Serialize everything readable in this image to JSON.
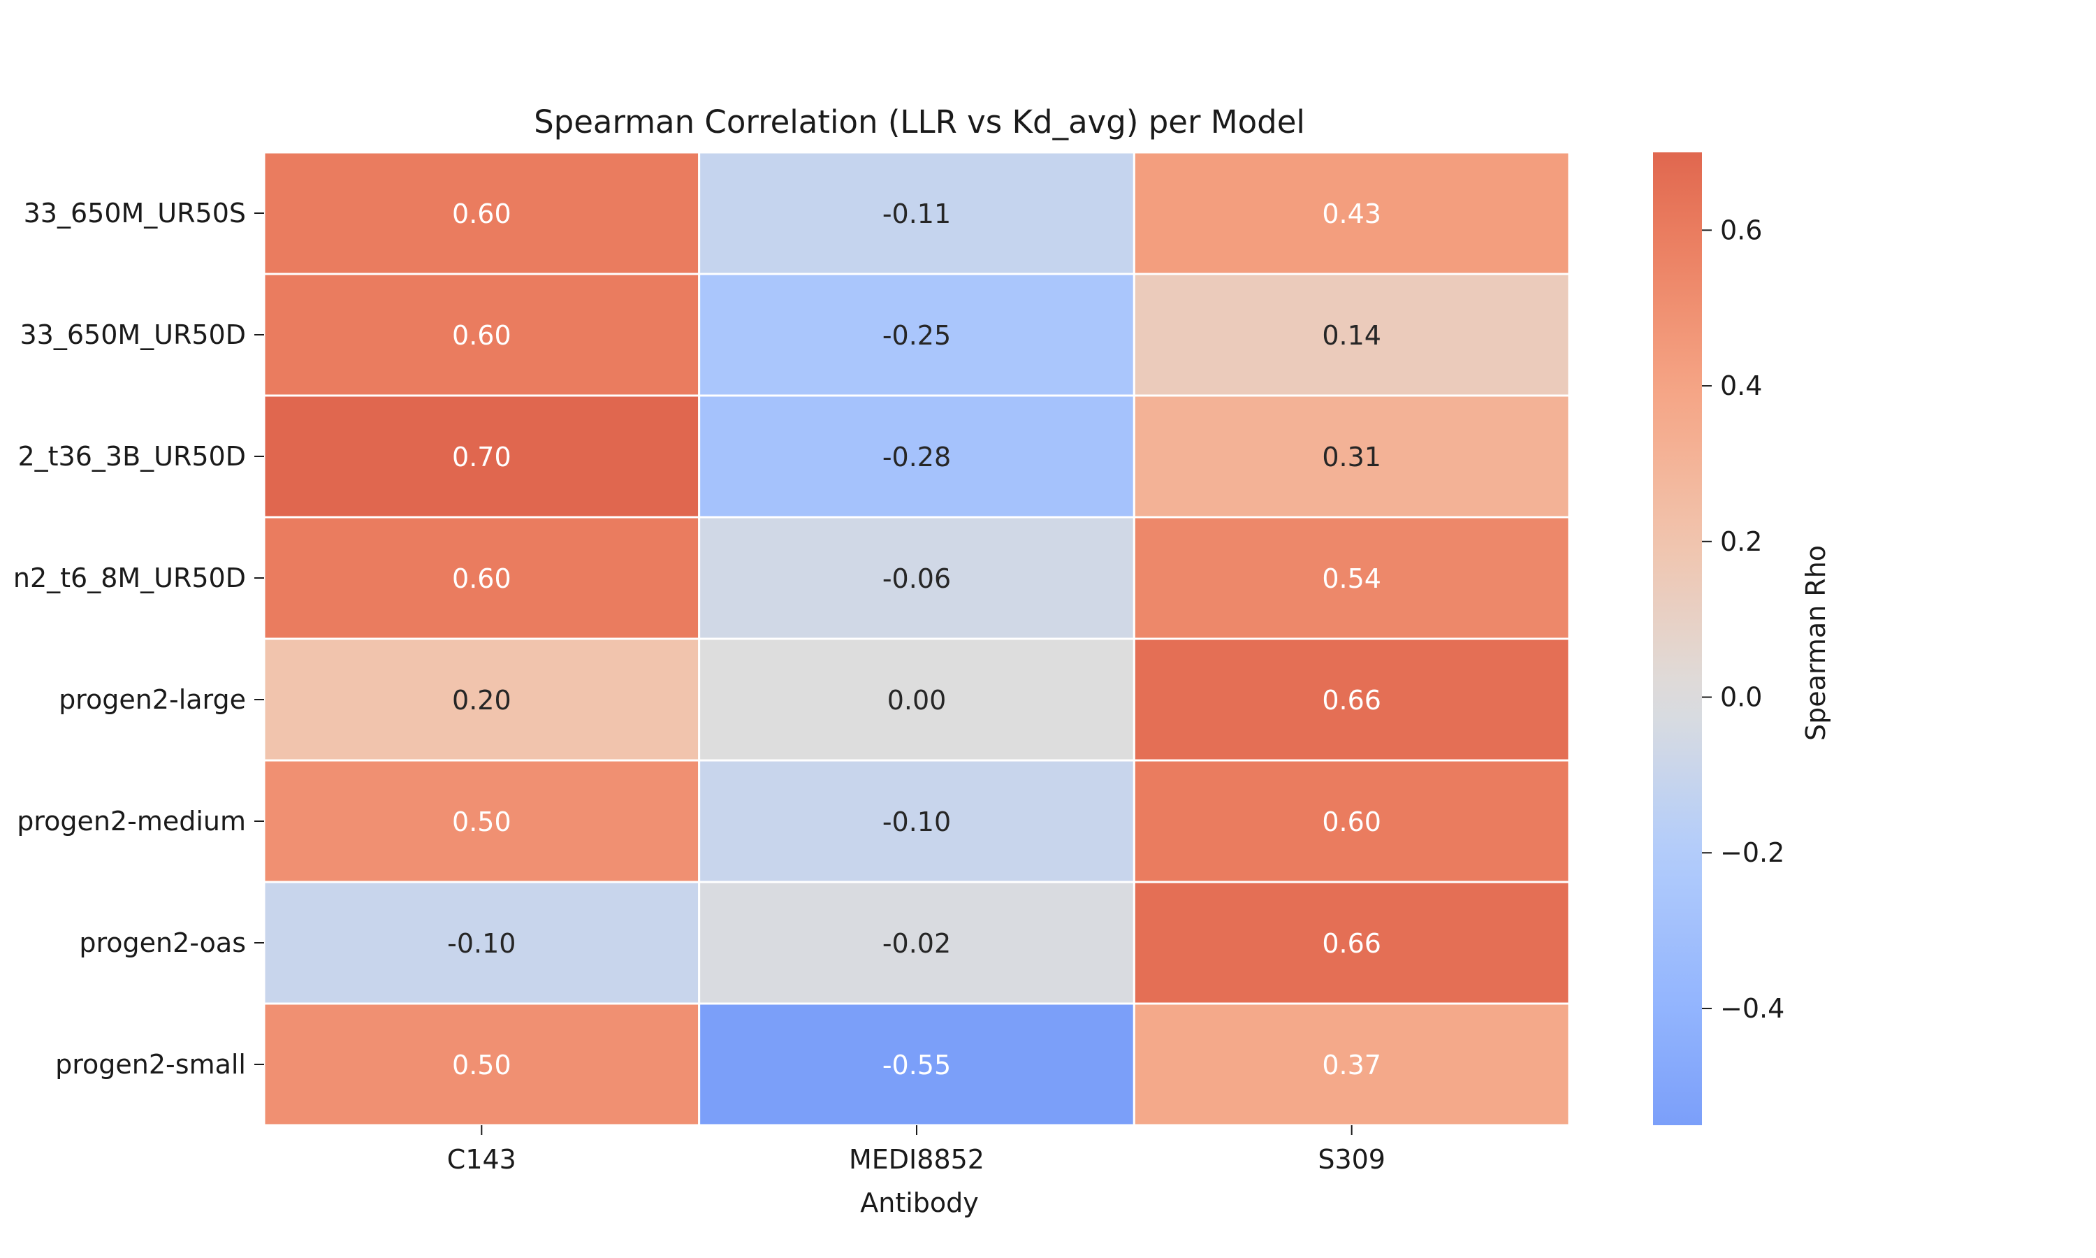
{
  "chart_data": {
    "type": "heatmap",
    "title": "Spearman Correlation (LLR vs Kd_avg) per Model",
    "xlabel": "Antibody",
    "ylabel": "",
    "columns": [
      "C143",
      "MEDI8852",
      "S309"
    ],
    "rows": [
      "33_650M_UR50S",
      "33_650M_UR50D",
      "2_t36_3B_UR50D",
      "n2_t6_8M_UR50D",
      "progen2-large",
      "progen2-medium",
      "progen2-oas",
      "progen2-small"
    ],
    "values": [
      [
        0.6,
        -0.11,
        0.43
      ],
      [
        0.6,
        -0.25,
        0.14
      ],
      [
        0.7,
        -0.28,
        0.31
      ],
      [
        0.6,
        -0.06,
        0.54
      ],
      [
        0.2,
        0.0,
        0.66
      ],
      [
        0.5,
        -0.1,
        0.6
      ],
      [
        -0.1,
        -0.02,
        0.66
      ],
      [
        0.5,
        -0.55,
        0.37
      ]
    ],
    "value_labels": [
      [
        "0.60",
        "-0.11",
        "0.43"
      ],
      [
        "0.60",
        "-0.25",
        "0.14"
      ],
      [
        "0.70",
        "-0.28",
        "0.31"
      ],
      [
        "0.60",
        "-0.06",
        "0.54"
      ],
      [
        "0.20",
        "0.00",
        "0.66"
      ],
      [
        "0.50",
        "-0.10",
        "0.60"
      ],
      [
        "-0.10",
        "-0.02",
        "0.66"
      ],
      [
        "0.50",
        "-0.55",
        "0.37"
      ]
    ],
    "colormap": "coolwarm",
    "vmin": -0.55,
    "vmax": 0.7,
    "colorbar": {
      "label": "Spearman Rho",
      "ticks": [
        -0.4,
        -0.2,
        0.0,
        0.2,
        0.4,
        0.6
      ],
      "tick_labels": [
        "−0.4",
        "−0.2",
        "0.0",
        "0.2",
        "0.4",
        "0.6"
      ]
    },
    "grid": false,
    "legend": "colorbar-right"
  }
}
